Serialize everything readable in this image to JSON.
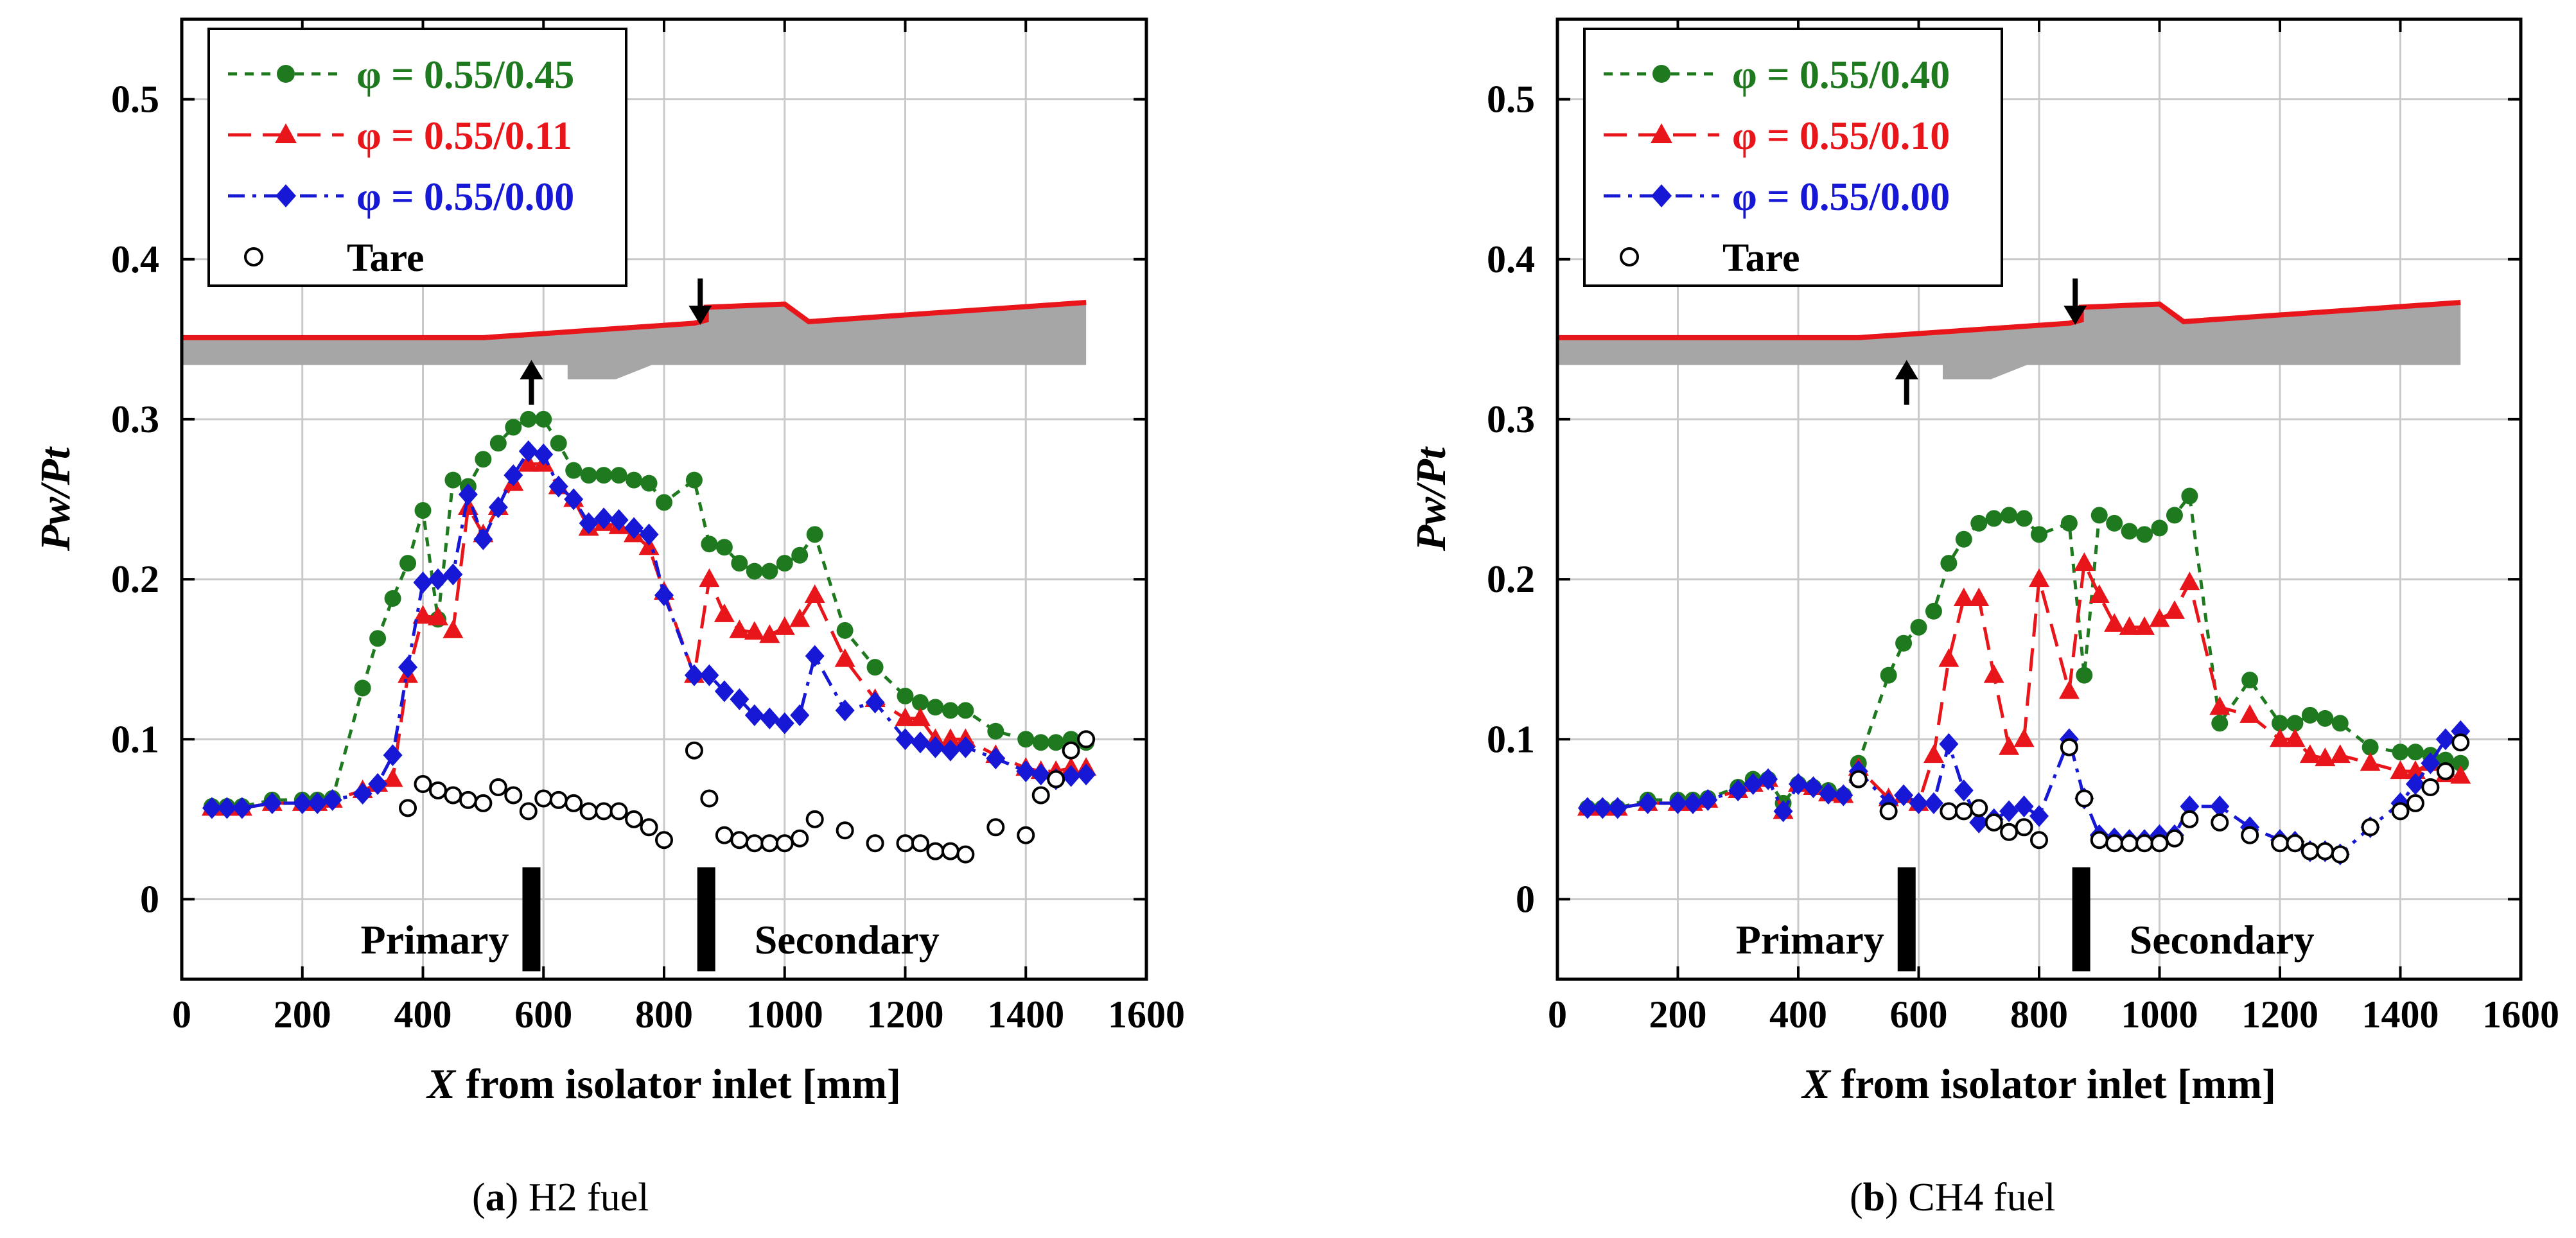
{
  "chart_data": [
    {
      "type": "line",
      "panel": "a",
      "fuel": "H2",
      "caption_letter": "a",
      "caption_text": "H2 fuel",
      "xlabel": "X from isolator inlet [mm]",
      "ylabel": "Pw/Pt",
      "xlim": [
        0,
        1600
      ],
      "ylim": [
        -0.05,
        0.55
      ],
      "xticks": [
        0,
        200,
        400,
        600,
        800,
        1000,
        1200,
        1400,
        1600
      ],
      "yticks": [
        0,
        0.1,
        0.2,
        0.3,
        0.4,
        0.5
      ],
      "ytick_labels": [
        "0",
        "0.1",
        "0.2",
        "0.3",
        "0.4",
        "0.5"
      ],
      "grid": true,
      "legend_position": "top-left",
      "annotations": {
        "primary_label": "Primary",
        "secondary_label": "Secondary",
        "primary_injector_x": 580,
        "secondary_injector_x": 870,
        "arrow_up_x": 580,
        "arrow_down_x": 860
      },
      "series": [
        {
          "name": "φ = 0.55/0.45",
          "color": "#1f7a1f",
          "marker": "circle",
          "dash": "short",
          "x": [
            50,
            75,
            100,
            150,
            200,
            225,
            250,
            300,
            325,
            350,
            375,
            400,
            425,
            450,
            475,
            500,
            525,
            550,
            575,
            600,
            625,
            650,
            675,
            700,
            725,
            750,
            775,
            800,
            850,
            875,
            900,
            925,
            950,
            975,
            1000,
            1025,
            1050,
            1100,
            1150,
            1200,
            1225,
            1250,
            1275,
            1300,
            1350,
            1400,
            1425,
            1450,
            1475,
            1500
          ],
          "y": [
            0.058,
            0.058,
            0.058,
            0.062,
            0.062,
            0.062,
            0.063,
            0.132,
            0.163,
            0.188,
            0.21,
            0.243,
            0.175,
            0.262,
            0.258,
            0.275,
            0.285,
            0.295,
            0.3,
            0.3,
            0.285,
            0.268,
            0.265,
            0.265,
            0.265,
            0.262,
            0.26,
            0.248,
            0.262,
            0.222,
            0.22,
            0.21,
            0.205,
            0.205,
            0.21,
            0.215,
            0.228,
            0.168,
            0.145,
            0.127,
            0.123,
            0.12,
            0.118,
            0.118,
            0.105,
            0.1,
            0.098,
            0.098,
            0.1,
            0.098
          ]
        },
        {
          "name": "φ = 0.55/0.11",
          "color": "#e8161b",
          "marker": "triangle",
          "dash": "long",
          "x": [
            50,
            75,
            100,
            150,
            200,
            225,
            250,
            300,
            325,
            350,
            375,
            400,
            425,
            450,
            475,
            500,
            525,
            550,
            575,
            600,
            625,
            650,
            675,
            700,
            725,
            750,
            775,
            800,
            850,
            875,
            900,
            925,
            950,
            975,
            1000,
            1025,
            1050,
            1100,
            1150,
            1200,
            1225,
            1250,
            1275,
            1300,
            1350,
            1400,
            1425,
            1450,
            1475,
            1500
          ],
          "y": [
            0.057,
            0.057,
            0.057,
            0.06,
            0.06,
            0.06,
            0.062,
            0.068,
            0.072,
            0.075,
            0.14,
            0.177,
            0.176,
            0.168,
            0.245,
            0.228,
            0.245,
            0.26,
            0.272,
            0.272,
            0.258,
            0.25,
            0.232,
            0.235,
            0.233,
            0.228,
            0.22,
            0.192,
            0.14,
            0.2,
            0.178,
            0.168,
            0.167,
            0.165,
            0.17,
            0.175,
            0.19,
            0.15,
            0.125,
            0.113,
            0.113,
            0.1,
            0.1,
            0.1,
            0.09,
            0.082,
            0.08,
            0.08,
            0.082,
            0.082
          ]
        },
        {
          "name": "φ = 0.55/0.00",
          "color": "#1717d6",
          "marker": "diamond",
          "dash": "dashdot",
          "x": [
            50,
            75,
            100,
            150,
            200,
            225,
            250,
            300,
            325,
            350,
            375,
            400,
            425,
            450,
            475,
            500,
            525,
            550,
            575,
            600,
            625,
            650,
            675,
            700,
            725,
            750,
            775,
            800,
            850,
            875,
            900,
            925,
            950,
            975,
            1000,
            1025,
            1050,
            1100,
            1150,
            1200,
            1225,
            1250,
            1275,
            1300,
            1350,
            1400,
            1425,
            1450,
            1475,
            1500
          ],
          "y": [
            0.057,
            0.057,
            0.057,
            0.06,
            0.06,
            0.06,
            0.062,
            0.066,
            0.072,
            0.09,
            0.145,
            0.198,
            0.2,
            0.203,
            0.253,
            0.225,
            0.245,
            0.265,
            0.28,
            0.278,
            0.258,
            0.25,
            0.235,
            0.238,
            0.237,
            0.232,
            0.228,
            0.19,
            0.14,
            0.14,
            0.13,
            0.125,
            0.115,
            0.113,
            0.11,
            0.115,
            0.152,
            0.118,
            0.123,
            0.1,
            0.098,
            0.095,
            0.093,
            0.095,
            0.088,
            0.08,
            0.078,
            0.075,
            0.077,
            0.078
          ]
        },
        {
          "name": "Tare",
          "color": "#000000",
          "marker": "open-circle",
          "dash": "none",
          "x": [
            375,
            400,
            425,
            450,
            475,
            500,
            525,
            550,
            575,
            600,
            625,
            650,
            675,
            700,
            725,
            750,
            775,
            800,
            850,
            875,
            900,
            925,
            950,
            975,
            1000,
            1025,
            1050,
            1100,
            1150,
            1200,
            1225,
            1250,
            1275,
            1300,
            1350,
            1400,
            1425,
            1450,
            1475,
            1500
          ],
          "y": [
            0.057,
            0.072,
            0.068,
            0.065,
            0.062,
            0.06,
            0.07,
            0.065,
            0.055,
            0.063,
            0.062,
            0.06,
            0.055,
            0.055,
            0.055,
            0.05,
            0.045,
            0.037,
            0.093,
            0.063,
            0.04,
            0.037,
            0.035,
            0.035,
            0.035,
            0.038,
            0.05,
            0.043,
            0.035,
            0.035,
            0.035,
            0.03,
            0.03,
            0.028,
            0.045,
            0.04,
            0.065,
            0.075,
            0.093,
            0.1
          ]
        }
      ]
    },
    {
      "type": "line",
      "panel": "b",
      "fuel": "CH4",
      "caption_letter": "b",
      "caption_text": "CH4 fuel",
      "xlabel": "X from isolator inlet [mm]",
      "ylabel": "Pw/Pt",
      "xlim": [
        0,
        1600
      ],
      "ylim": [
        -0.05,
        0.55
      ],
      "xticks": [
        0,
        200,
        400,
        600,
        800,
        1000,
        1200,
        1400,
        1600
      ],
      "yticks": [
        0,
        0.1,
        0.2,
        0.3,
        0.4,
        0.5
      ],
      "ytick_labels": [
        "0",
        "0.1",
        "0.2",
        "0.3",
        "0.4",
        "0.5"
      ],
      "grid": true,
      "legend_position": "top-left",
      "annotations": {
        "primary_label": "Primary",
        "secondary_label": "Secondary",
        "primary_injector_x": 580,
        "secondary_injector_x": 870,
        "arrow_up_x": 580,
        "arrow_down_x": 860
      },
      "series": [
        {
          "name": "φ = 0.55/0.40",
          "color": "#1f7a1f",
          "marker": "circle",
          "dash": "short",
          "x": [
            50,
            75,
            100,
            150,
            200,
            225,
            250,
            300,
            325,
            350,
            375,
            400,
            425,
            450,
            475,
            500,
            550,
            575,
            600,
            625,
            650,
            675,
            700,
            725,
            750,
            775,
            800,
            850,
            875,
            900,
            925,
            950,
            975,
            1000,
            1025,
            1050,
            1100,
            1150,
            1200,
            1225,
            1250,
            1275,
            1300,
            1350,
            1400,
            1425,
            1450,
            1475,
            1500
          ],
          "y": [
            0.057,
            0.057,
            0.057,
            0.062,
            0.062,
            0.062,
            0.063,
            0.07,
            0.075,
            0.075,
            0.06,
            0.072,
            0.07,
            0.068,
            0.065,
            0.085,
            0.14,
            0.16,
            0.17,
            0.18,
            0.21,
            0.225,
            0.235,
            0.238,
            0.24,
            0.238,
            0.228,
            0.235,
            0.14,
            0.24,
            0.235,
            0.23,
            0.228,
            0.232,
            0.24,
            0.252,
            0.11,
            0.137,
            0.11,
            0.11,
            0.115,
            0.113,
            0.11,
            0.095,
            0.092,
            0.092,
            0.09,
            0.087,
            0.085
          ]
        },
        {
          "name": "φ = 0.55/0.10",
          "color": "#e8161b",
          "marker": "triangle",
          "dash": "long",
          "x": [
            50,
            75,
            100,
            150,
            200,
            225,
            250,
            300,
            325,
            350,
            375,
            400,
            425,
            450,
            475,
            500,
            550,
            575,
            600,
            625,
            650,
            675,
            700,
            725,
            750,
            775,
            800,
            850,
            875,
            900,
            925,
            950,
            975,
            1000,
            1025,
            1050,
            1100,
            1150,
            1200,
            1225,
            1250,
            1275,
            1300,
            1350,
            1400,
            1425,
            1450,
            1475,
            1500
          ],
          "y": [
            0.057,
            0.057,
            0.057,
            0.06,
            0.06,
            0.06,
            0.062,
            0.068,
            0.072,
            0.075,
            0.055,
            0.072,
            0.07,
            0.066,
            0.065,
            0.082,
            0.063,
            0.065,
            0.06,
            0.09,
            0.15,
            0.188,
            0.188,
            0.14,
            0.095,
            0.1,
            0.2,
            0.13,
            0.21,
            0.19,
            0.172,
            0.17,
            0.17,
            0.175,
            0.18,
            0.198,
            0.12,
            0.115,
            0.1,
            0.1,
            0.09,
            0.088,
            0.09,
            0.085,
            0.08,
            0.08,
            0.085,
            0.078,
            0.077
          ]
        },
        {
          "name": "φ = 0.55/0.00",
          "color": "#1717d6",
          "marker": "diamond",
          "dash": "dashdot",
          "x": [
            50,
            75,
            100,
            150,
            200,
            225,
            250,
            300,
            325,
            350,
            375,
            400,
            425,
            450,
            475,
            500,
            550,
            575,
            600,
            625,
            650,
            675,
            700,
            725,
            750,
            775,
            800,
            850,
            875,
            900,
            925,
            950,
            975,
            1000,
            1025,
            1050,
            1100,
            1150,
            1200,
            1225,
            1250,
            1275,
            1300,
            1350,
            1400,
            1425,
            1450,
            1475,
            1500
          ],
          "y": [
            0.057,
            0.057,
            0.057,
            0.06,
            0.06,
            0.06,
            0.062,
            0.068,
            0.072,
            0.075,
            0.055,
            0.072,
            0.07,
            0.066,
            0.065,
            0.08,
            0.06,
            0.065,
            0.06,
            0.06,
            0.097,
            0.068,
            0.048,
            0.05,
            0.055,
            0.058,
            0.052,
            0.1,
            0.063,
            0.04,
            0.038,
            0.037,
            0.037,
            0.04,
            0.04,
            0.058,
            0.058,
            0.045,
            0.037,
            0.036,
            0.03,
            0.03,
            0.028,
            0.045,
            0.06,
            0.072,
            0.085,
            0.1,
            0.105
          ]
        },
        {
          "name": "Tare",
          "color": "#000000",
          "marker": "open-circle",
          "dash": "none",
          "x": [
            500,
            550,
            650,
            675,
            700,
            725,
            750,
            775,
            800,
            850,
            875,
            900,
            925,
            950,
            975,
            1000,
            1025,
            1050,
            1100,
            1150,
            1200,
            1225,
            1250,
            1275,
            1300,
            1350,
            1400,
            1425,
            1450,
            1475,
            1500
          ],
          "y": [
            0.075,
            0.055,
            0.055,
            0.055,
            0.057,
            0.048,
            0.042,
            0.045,
            0.037,
            0.095,
            0.063,
            0.037,
            0.035,
            0.035,
            0.035,
            0.035,
            0.038,
            0.05,
            0.048,
            0.04,
            0.035,
            0.035,
            0.03,
            0.03,
            0.028,
            0.045,
            0.055,
            0.06,
            0.07,
            0.08,
            0.098
          ]
        }
      ]
    }
  ]
}
